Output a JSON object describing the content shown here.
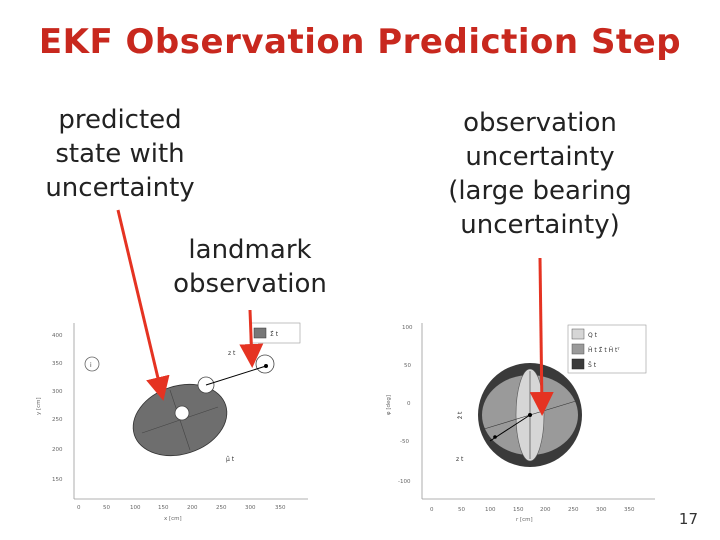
{
  "slide": {
    "title": "EKF Observation Prediction Step",
    "page_number": "17"
  },
  "captions": {
    "predicted": "predicted\nstate with\nuncertainty",
    "landmark": "landmark\nobservation",
    "observation": "observation\nuncertainty\n(large bearing\nuncertainty)"
  },
  "colors": {
    "title": "#c8281e",
    "arrow": "#e53322",
    "ellipse_dark": "#6e6e6e",
    "ellipse_mid": "#9a9a9a",
    "ellipse_light": "#d6d6d6",
    "ellipse_outer": "#3a3a3a"
  },
  "left_plot": {
    "legend": [
      "Σ̂ t"
    ],
    "y_ticks": [
      "400",
      "350",
      "300",
      "250",
      "200",
      "150"
    ],
    "x_ticks": [
      "0",
      "50",
      "100",
      "150",
      "200",
      "250",
      "300",
      "350"
    ],
    "ylabel": "y [cm]",
    "xlabel": "x [cm]",
    "label_z": "z t",
    "label_mu": "μ̂ t",
    "label_i": "i"
  },
  "right_plot": {
    "legend": [
      "Q t",
      "Ĥ t Σ̂ t Ĥ tᵀ",
      "Ŝ t"
    ],
    "y_ticks": [
      "100",
      "50",
      "0",
      "-50",
      "-100"
    ],
    "x_ticks": [
      "0",
      "50",
      "100",
      "150",
      "200",
      "250",
      "300",
      "350"
    ],
    "ylabel": "φ [deg]",
    "xlabel": "r [cm]",
    "label_zhat": "ẑ t",
    "label_z": "z t"
  }
}
